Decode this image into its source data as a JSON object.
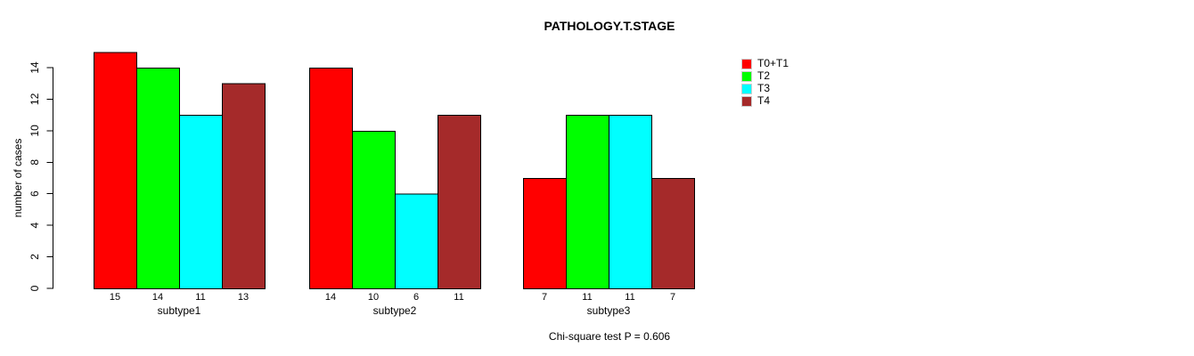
{
  "chart_data": {
    "type": "bar",
    "title": "PATHOLOGY.T.STAGE",
    "ylabel": "number of cases",
    "xlabel": "",
    "note": "Chi-square test P = 0.606",
    "categories": [
      "subtype1",
      "subtype2",
      "subtype3"
    ],
    "series": [
      {
        "name": "T0+T1",
        "color": "#FF0000",
        "values": [
          15,
          14,
          7
        ]
      },
      {
        "name": "T2",
        "color": "#00FF00",
        "values": [
          14,
          10,
          11
        ]
      },
      {
        "name": "T3",
        "color": "#00FFFF",
        "values": [
          11,
          6,
          11
        ]
      },
      {
        "name": "T4",
        "color": "#A52A2A",
        "values": [
          13,
          11,
          7
        ]
      }
    ],
    "y_ticks": [
      0,
      2,
      4,
      6,
      8,
      10,
      12,
      14
    ],
    "ylim": [
      0,
      15
    ],
    "bar_value_labels": true,
    "legend_position": "right",
    "grid": false,
    "background_color": "#FFFFFF",
    "axis_color": "#000000"
  }
}
